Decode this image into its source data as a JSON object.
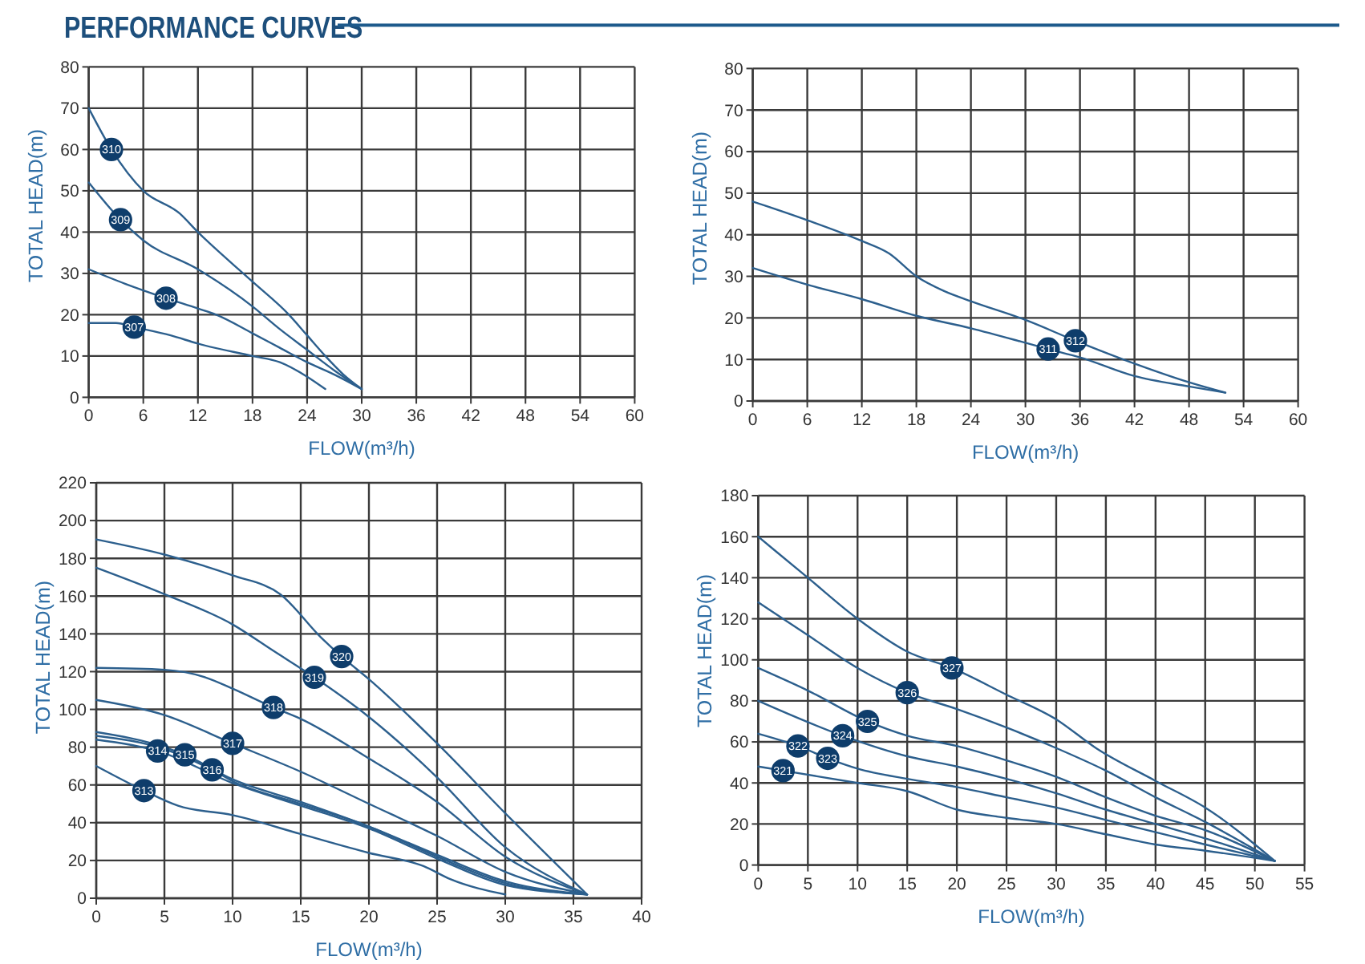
{
  "chart_data": [
    {
      "type": "line",
      "title": "PERFORMANCE CURVES",
      "xlabel": "FLOW(m³/h)",
      "ylabel": "TOTAL HEAD(m)",
      "xlim": [
        0,
        60
      ],
      "xticks": [
        0,
        6,
        12,
        18,
        24,
        30,
        36,
        42,
        48,
        54,
        60
      ],
      "ylim": [
        0,
        80
      ],
      "yticks": [
        0,
        10,
        20,
        30,
        40,
        50,
        60,
        70,
        80
      ],
      "grid": true,
      "series": [
        {
          "name": "307",
          "color": "#2c5f8d",
          "x": [
            0,
            3,
            5,
            9,
            12,
            18,
            21,
            24,
            26
          ],
          "values": [
            18,
            18,
            17,
            15,
            13,
            10,
            8.5,
            5,
            2
          ]
        },
        {
          "name": "308",
          "color": "#2c5f8d",
          "x": [
            0,
            4,
            8.5,
            12,
            14,
            18,
            21,
            24,
            27,
            30
          ],
          "values": [
            31,
            27.5,
            24,
            21.5,
            20,
            15.5,
            12,
            8.5,
            5.5,
            2
          ]
        },
        {
          "name": "309",
          "color": "#2c5f8d",
          "x": [
            0,
            3.5,
            6,
            12,
            18,
            21,
            24,
            27,
            30
          ],
          "values": [
            52,
            43,
            38,
            31,
            22,
            16.5,
            11.5,
            6.5,
            2
          ]
        },
        {
          "name": "310",
          "color": "#2c5f8d",
          "x": [
            0,
            2.5,
            6,
            10,
            12,
            18,
            22,
            24,
            26,
            28,
            30
          ],
          "values": [
            70,
            60,
            50,
            44.5,
            40,
            28,
            20,
            15,
            10,
            5.5,
            2
          ]
        }
      ]
    },
    {
      "type": "line",
      "xlabel": "FLOW(m³/h)",
      "ylabel": "TOTAL HEAD(m)",
      "xlim": [
        0,
        60
      ],
      "xticks": [
        0,
        6,
        12,
        18,
        24,
        30,
        36,
        42,
        48,
        54,
        60
      ],
      "ylim": [
        0,
        80
      ],
      "yticks": [
        0,
        10,
        20,
        30,
        40,
        50,
        60,
        70,
        80
      ],
      "grid": true,
      "series": [
        {
          "name": "311",
          "color": "#2c5f8d",
          "x": [
            0,
            6,
            12,
            18,
            24,
            30,
            32.5,
            36,
            42,
            48,
            52
          ],
          "values": [
            32,
            28,
            24.5,
            20.5,
            17.5,
            14,
            12.5,
            10.5,
            6,
            3.5,
            2
          ]
        },
        {
          "name": "312",
          "color": "#2c5f8d",
          "x": [
            0,
            6,
            12,
            15,
            18,
            21,
            24,
            30,
            35.5,
            42,
            48,
            52
          ],
          "values": [
            48,
            43.5,
            38.5,
            35.5,
            30,
            26.5,
            24,
            19.5,
            14.5,
            9,
            4.5,
            2
          ]
        }
      ]
    },
    {
      "type": "line",
      "xlabel": "FLOW(m³/h)",
      "ylabel": "TOTAL HEAD(m)",
      "xlim": [
        0,
        40
      ],
      "xticks": [
        0,
        5,
        10,
        15,
        20,
        25,
        30,
        35,
        40
      ],
      "ylim": [
        0,
        220
      ],
      "yticks": [
        0,
        20,
        40,
        60,
        80,
        100,
        120,
        140,
        160,
        180,
        200,
        220
      ],
      "grid": true,
      "series": [
        {
          "name": "313",
          "color": "#2c5f8d",
          "x": [
            0,
            3.5,
            6,
            10,
            15,
            20,
            24,
            26,
            30
          ],
          "values": [
            70,
            57,
            49,
            44,
            34,
            24,
            17,
            10,
            2
          ]
        },
        {
          "name": "314",
          "color": "#2c5f8d",
          "x": [
            0,
            4.5,
            10,
            15,
            20,
            25,
            30,
            36
          ],
          "values": [
            84,
            78,
            61,
            49,
            37,
            21,
            7,
            2
          ]
        },
        {
          "name": "315",
          "color": "#2c5f8d",
          "x": [
            0,
            5,
            6.5,
            10,
            15,
            20,
            25,
            30,
            36
          ],
          "values": [
            88,
            80,
            76,
            63,
            51,
            38,
            23,
            9,
            2
          ]
        },
        {
          "name": "316",
          "color": "#2c5f8d",
          "x": [
            0,
            5,
            8.5,
            10,
            15,
            20,
            25,
            30,
            36
          ],
          "values": [
            86,
            79,
            68,
            62,
            50,
            38,
            22,
            8,
            2
          ]
        },
        {
          "name": "317",
          "color": "#2c5f8d",
          "x": [
            0,
            5,
            10,
            15,
            20,
            25,
            30,
            36
          ],
          "values": [
            105,
            97,
            82,
            67,
            50,
            33,
            14,
            2
          ]
        },
        {
          "name": "318",
          "color": "#2c5f8d",
          "x": [
            0,
            5,
            8,
            10,
            13,
            15,
            20,
            25,
            30,
            36
          ],
          "values": [
            122,
            121,
            117,
            111,
            101,
            95,
            74,
            51,
            22,
            2
          ]
        },
        {
          "name": "319",
          "color": "#2c5f8d",
          "x": [
            0,
            5,
            10,
            13,
            16,
            20,
            25,
            30,
            36
          ],
          "values": [
            175,
            161,
            145,
            131,
            117,
            96,
            64,
            27,
            2
          ]
        },
        {
          "name": "320",
          "color": "#2c5f8d",
          "x": [
            0,
            5,
            10,
            13.5,
            16.5,
            18,
            20,
            25,
            30,
            36
          ],
          "values": [
            190,
            182,
            171,
            161,
            138,
            128,
            116,
            82,
            45,
            2
          ]
        }
      ]
    },
    {
      "type": "line",
      "xlabel": "FLOW(m³/h)",
      "ylabel": "TOTAL HEAD(m)",
      "xlim": [
        0,
        55
      ],
      "xticks": [
        0,
        5,
        10,
        15,
        20,
        25,
        30,
        35,
        40,
        45,
        50,
        55
      ],
      "ylim": [
        0,
        180
      ],
      "yticks": [
        0,
        20,
        40,
        60,
        80,
        100,
        120,
        140,
        160,
        180
      ],
      "grid": true,
      "annotations": [
        {
          "text": "322",
          "x": 4,
          "y": 58
        }
      ],
      "series": [
        {
          "name": "321",
          "color": "#2c5f8d",
          "x": [
            0,
            2.5,
            10,
            15,
            20,
            25,
            30,
            35,
            40,
            45,
            52
          ],
          "values": [
            48,
            46,
            40,
            36,
            27,
            23,
            20,
            15,
            10,
            7,
            2
          ]
        },
        {
          "name": "323",
          "color": "#2c5f8d",
          "x": [
            0,
            4,
            7,
            10,
            15,
            20,
            25,
            30,
            35,
            40,
            45,
            52
          ],
          "values": [
            64,
            58,
            52,
            47,
            42,
            38,
            33,
            28,
            22,
            16,
            10,
            2
          ]
        },
        {
          "name": "324",
          "color": "#2c5f8d",
          "x": [
            0,
            8.5,
            15,
            20,
            25,
            30,
            35,
            40,
            45,
            52
          ],
          "values": [
            80,
            63,
            53,
            48,
            42,
            35,
            27,
            20,
            13,
            2
          ]
        },
        {
          "name": "325",
          "color": "#2c5f8d",
          "x": [
            0,
            5,
            11,
            15,
            20,
            25,
            30,
            35,
            40,
            45,
            52
          ],
          "values": [
            96,
            85,
            70,
            63,
            58,
            51,
            43,
            33,
            24,
            17,
            2
          ]
        },
        {
          "name": "326",
          "color": "#2c5f8d",
          "x": [
            0,
            5,
            10,
            15,
            20,
            25,
            30,
            35,
            40,
            45,
            52
          ],
          "values": [
            128,
            112,
            96,
            84,
            76,
            67,
            57,
            46,
            33,
            21,
            2
          ]
        },
        {
          "name": "327",
          "color": "#2c5f8d",
          "x": [
            0,
            5,
            10,
            15,
            19.5,
            25,
            30,
            34,
            40,
            45,
            52
          ],
          "values": [
            160,
            140,
            120,
            104,
            96,
            83,
            71,
            57,
            41,
            28,
            2
          ]
        }
      ]
    }
  ]
}
